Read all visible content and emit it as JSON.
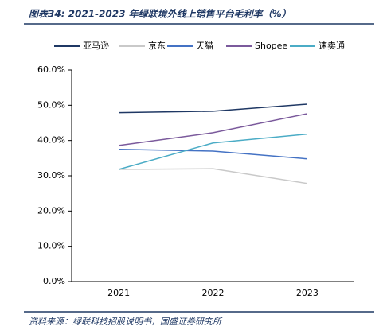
{
  "chart_data": {
    "type": "line",
    "title": "图表34: 2021-2023 年绿联境外线上销售平台毛利率（%）",
    "source": "资料来源：绿联科技招股说明书，国盛证券研究所",
    "categories": [
      "2021",
      "2022",
      "2023"
    ],
    "series": [
      {
        "name": "亚马逊",
        "color": "#1f3864",
        "values": [
          47.9,
          48.3,
          50.3
        ]
      },
      {
        "name": "京东",
        "color": "#c9c9c9",
        "values": [
          31.8,
          32.0,
          27.8
        ]
      },
      {
        "name": "天猫",
        "color": "#4472c4",
        "values": [
          37.5,
          37.0,
          34.8
        ]
      },
      {
        "name": "Shopee",
        "color": "#7b5a9c",
        "values": [
          38.6,
          42.2,
          47.6
        ]
      },
      {
        "name": "速卖通",
        "color": "#4bacc6",
        "values": [
          31.8,
          39.3,
          41.8
        ]
      }
    ],
    "ylim": [
      0,
      60
    ],
    "yticks": [
      {
        "value": 0,
        "label": "0.0%"
      },
      {
        "value": 10,
        "label": "10.0%"
      },
      {
        "value": 20,
        "label": "20.0%"
      },
      {
        "value": 30,
        "label": "30.0%"
      },
      {
        "value": 40,
        "label": "40.0%"
      },
      {
        "value": 50,
        "label": "50.0%"
      },
      {
        "value": 60,
        "label": "60.0%"
      }
    ],
    "grid": false
  }
}
